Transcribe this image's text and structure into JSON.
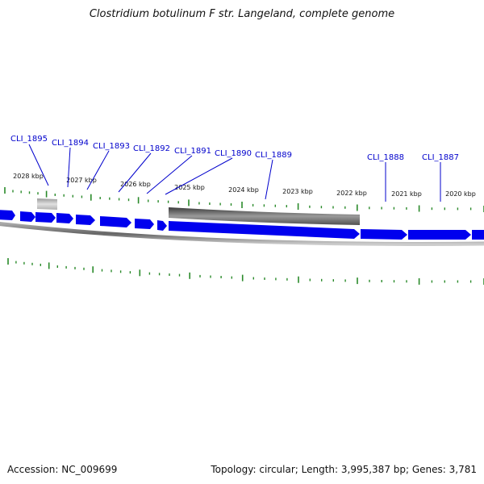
{
  "title": "Clostridium botulinum F str. Langeland, complete genome",
  "footer": {
    "accession": "Accession: NC_009699",
    "stats": "Topology: circular; Length: 3,995,387 bp; Genes: 3,781"
  },
  "colors": {
    "gene": "#0000ee",
    "tick": "#2a8a2a",
    "label": "#0000cc",
    "feature_dark": "#555555",
    "feature_light": "#c8c8c8",
    "backbone": "#888888"
  },
  "kbp_labels": [
    "2028 kbp",
    "2027 kbp",
    "2026 kbp",
    "2025 kbp",
    "2024 kbp",
    "2023 kbp",
    "2022 kbp",
    "2021 kbp",
    "2020 kbp"
  ],
  "gene_labels": [
    "CLI_1895",
    "CLI_1894",
    "CLI_1893",
    "CLI_1892",
    "CLI_1891",
    "CLI_1890",
    "CLI_1889",
    "CLI_1888",
    "CLI_1887"
  ]
}
